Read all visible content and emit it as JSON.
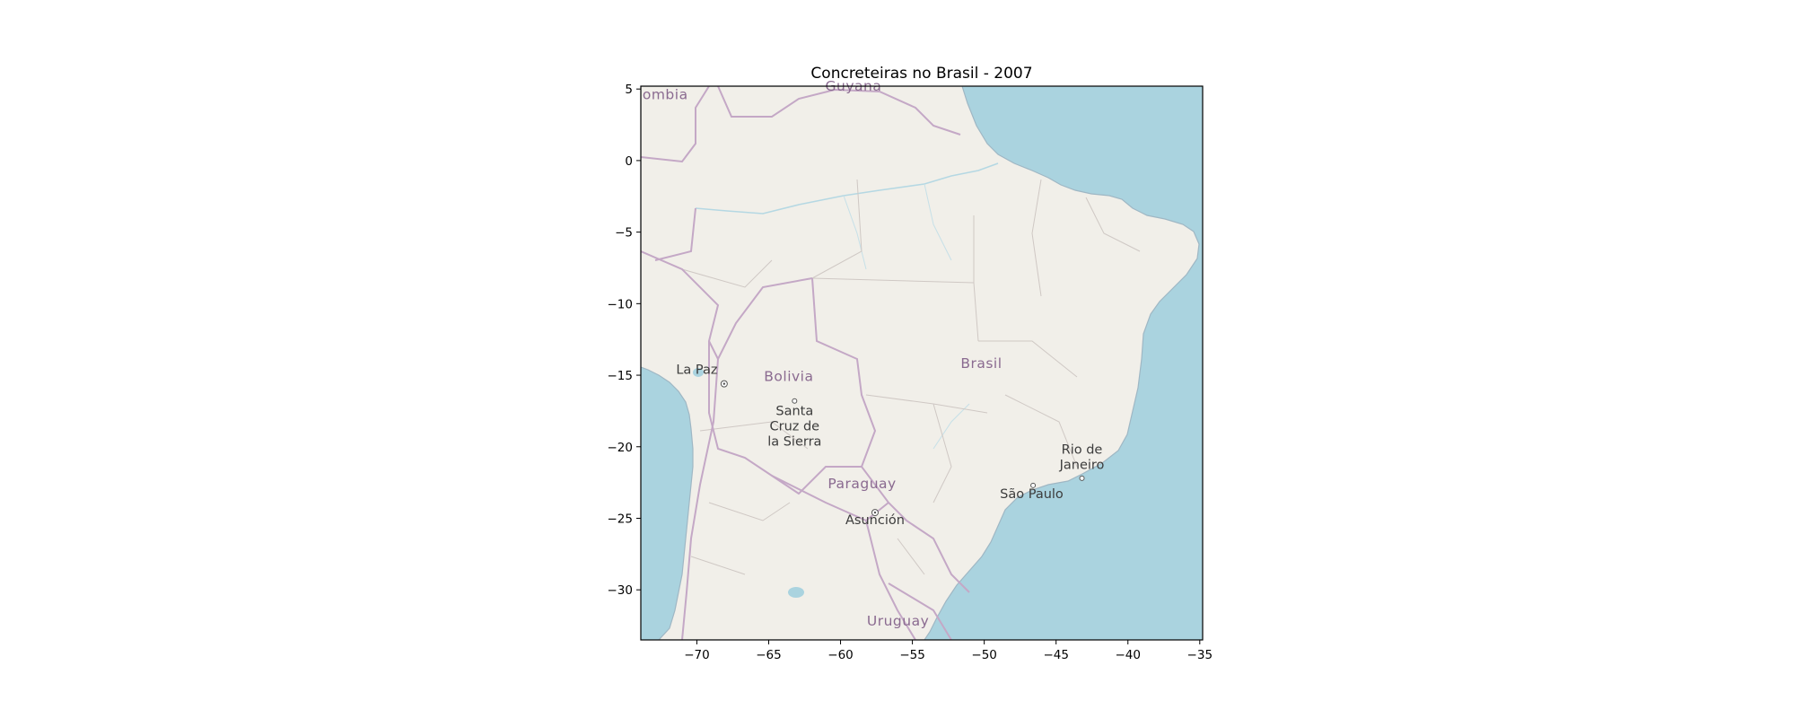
{
  "chart_data": {
    "type": "map",
    "title": "Concreteiras no Brasil - 2007",
    "xlim": [
      -73.9,
      -34.8
    ],
    "ylim": [
      -33.5,
      5.2
    ],
    "x_ticks": [
      -70,
      -65,
      -60,
      -55,
      -50,
      -45,
      -40,
      -35
    ],
    "y_ticks": [
      5,
      0,
      -5,
      -10,
      -15,
      -20,
      -25,
      -30
    ],
    "x_tick_labels": [
      "−70",
      "−65",
      "−60",
      "−55",
      "−50",
      "−45",
      "−40",
      "−35"
    ],
    "y_tick_labels": [
      "5",
      "0",
      "−5",
      "−10",
      "−15",
      "−20",
      "−25",
      "−30"
    ],
    "grid": false,
    "basemap": {
      "colors": {
        "land": "#f1efe9",
        "water": "#aad3df",
        "border": "#c4a8c6",
        "state_border": "#cfc8c4"
      },
      "country_labels": [
        {
          "text": "ombia",
          "lon": -72.2,
          "lat": 4.3
        },
        {
          "text": "Guyana",
          "lon": -59.1,
          "lat": 4.9
        },
        {
          "text": "Brasil",
          "lon": -50.2,
          "lat": -14.5
        },
        {
          "text": "Bolivia",
          "lon": -63.6,
          "lat": -15.4
        },
        {
          "text": "Paraguay",
          "lon": -58.5,
          "lat": -22.9
        },
        {
          "text": "Uruguay",
          "lon": -56.0,
          "lat": -32.5
        }
      ],
      "city_labels": [
        {
          "lines": [
            "La Paz"
          ],
          "lon": -70.0,
          "lat": -14.9,
          "marker": {
            "lon": -68.1,
            "lat": -15.6,
            "style": "capital"
          }
        },
        {
          "lines": [
            "Santa",
            "Cruz de",
            "la Sierra"
          ],
          "lon": -63.2,
          "lat": -17.8,
          "marker": {
            "lon": -63.2,
            "lat": -16.8,
            "style": "city"
          }
        },
        {
          "lines": [
            "Asunción"
          ],
          "lon": -57.6,
          "lat": -25.4,
          "marker": {
            "lon": -57.6,
            "lat": -24.6,
            "style": "capital"
          }
        },
        {
          "lines": [
            "São Paulo"
          ],
          "lon": -46.7,
          "lat": -23.6,
          "marker": {
            "lon": -46.6,
            "lat": -22.7,
            "style": "city"
          }
        },
        {
          "lines": [
            "Rio de",
            "Janeiro"
          ],
          "lon": -43.2,
          "lat": -20.5,
          "marker": {
            "lon": -43.2,
            "lat": -22.2,
            "style": "city"
          }
        }
      ]
    }
  }
}
